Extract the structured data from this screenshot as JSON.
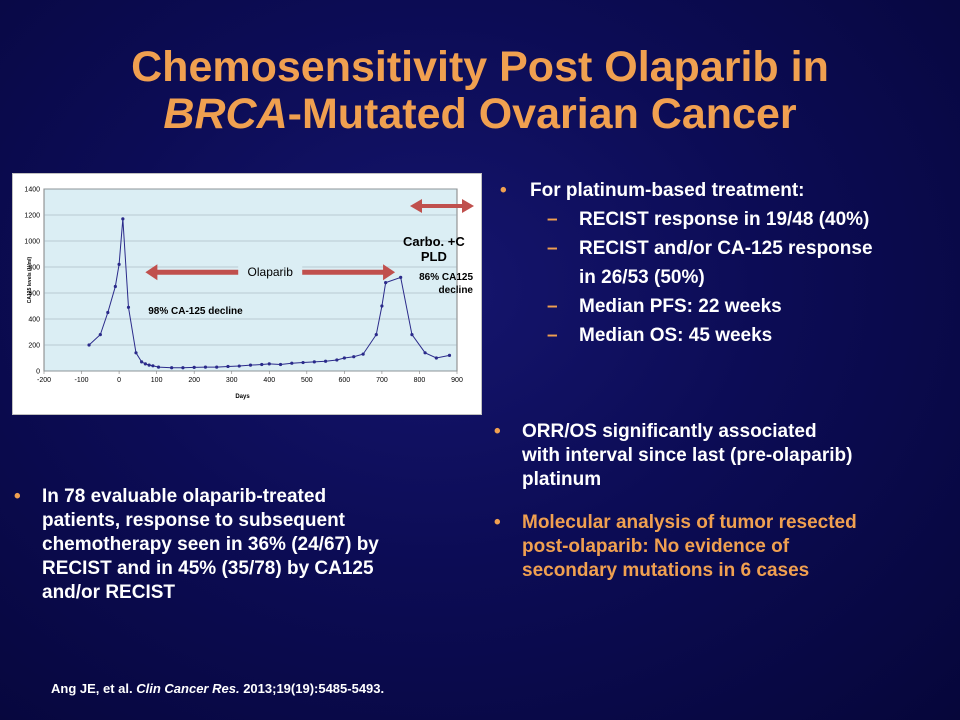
{
  "title": {
    "line1": "Chemosensitivity Post Olaparib in",
    "line2_italic": "BRCA",
    "line2_rest": "-Mutated Ovarian Cancer"
  },
  "right_bullets": {
    "header": "For platinum-based treatment:",
    "items": [
      "RECIST response in 19/48 (40%)",
      "RECIST and/or CA-125 response",
      "in 26/53 (50%)",
      "Median PFS: 22 weeks",
      "Median OS: 45 weeks"
    ]
  },
  "bullet_orr": {
    "lines": [
      "ORR/OS  significantly associated",
      "with interval since last (pre-olaparib)",
      "platinum"
    ]
  },
  "bullet_molecular": {
    "lines": [
      "Molecular analysis of tumor resected",
      "post-olaparib: No evidence of",
      "secondary mutations in 6 cases"
    ]
  },
  "bullet_left": {
    "lines": [
      "In 78 evaluable olaparib-treated",
      "patients, response to subsequent",
      "chemotherapy seen in 36%  (24/67) by",
      "RECIST and in 45%  (35/78) by CA125",
      "and/or RECIST"
    ]
  },
  "reference": {
    "authors": "Ang JE, et al. ",
    "journal": "Clin Cancer Res.",
    "details": " 2013;19(19):5485-5493."
  },
  "colors": {
    "title": "#f0a050",
    "bullet": "#f0a050",
    "line": "#2a2a8a",
    "arrow": "#c0504d",
    "plot_bg": "#dbeef4",
    "highlight_text": "#f0a050"
  },
  "chart_data": {
    "type": "line",
    "title": "",
    "xlabel": "Days",
    "ylabel": "CA125 levels (U/ml)",
    "xlim": [
      -200,
      900
    ],
    "ylim": [
      0,
      1400
    ],
    "xticks": [
      -200,
      -100,
      0,
      100,
      200,
      300,
      400,
      500,
      600,
      700,
      800,
      900
    ],
    "yticks": [
      0,
      200,
      400,
      600,
      800,
      1000,
      1200,
      1400
    ],
    "grid": true,
    "series": [
      {
        "points": [
          [
            -80,
            200
          ],
          [
            -50,
            280
          ],
          [
            -30,
            450
          ],
          [
            -10,
            650
          ],
          [
            0,
            820
          ],
          [
            10,
            1170
          ],
          [
            25,
            490
          ],
          [
            45,
            140
          ],
          [
            60,
            70
          ],
          [
            70,
            55
          ],
          [
            80,
            45
          ],
          [
            90,
            40
          ],
          [
            105,
            30
          ],
          [
            140,
            25
          ],
          [
            170,
            25
          ],
          [
            200,
            28
          ],
          [
            230,
            30
          ],
          [
            260,
            30
          ],
          [
            290,
            35
          ],
          [
            320,
            38
          ],
          [
            350,
            45
          ],
          [
            380,
            50
          ],
          [
            400,
            55
          ],
          [
            430,
            50
          ],
          [
            460,
            60
          ],
          [
            490,
            65
          ],
          [
            520,
            70
          ],
          [
            550,
            75
          ],
          [
            580,
            85
          ],
          [
            600,
            100
          ],
          [
            625,
            110
          ],
          [
            650,
            130
          ],
          [
            685,
            280
          ],
          [
            700,
            500
          ],
          [
            710,
            680
          ],
          [
            750,
            720
          ],
          [
            780,
            280
          ],
          [
            815,
            140
          ],
          [
            845,
            100
          ],
          [
            880,
            120
          ]
        ]
      }
    ],
    "annotations": [
      {
        "text": "Olaparib",
        "kind": "double-arrow",
        "x_from": 70,
        "x_to": 735,
        "y": 760
      },
      {
        "text": "98%  CA-125  decline",
        "kind": "label",
        "x": 310,
        "y": 440
      },
      {
        "text": "Carbo. +C",
        "kind": "label"
      },
      {
        "text": "PLD",
        "kind": "label"
      },
      {
        "text": "86%  CA125",
        "kind": "label"
      },
      {
        "text": "decline",
        "kind": "label"
      }
    ]
  }
}
